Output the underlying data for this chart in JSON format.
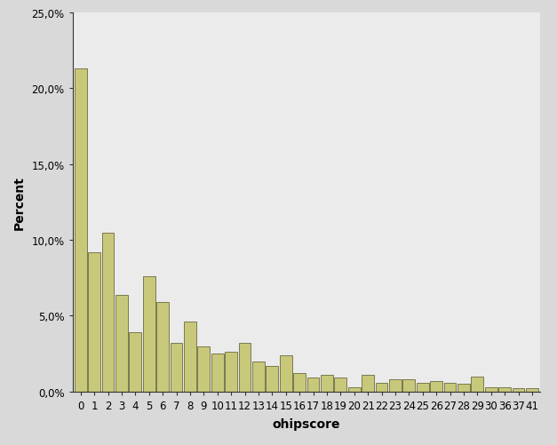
{
  "categories": [
    0,
    1,
    2,
    3,
    4,
    5,
    6,
    7,
    8,
    9,
    10,
    11,
    12,
    13,
    14,
    15,
    16,
    17,
    18,
    19,
    20,
    21,
    22,
    23,
    24,
    25,
    26,
    27,
    28,
    29,
    30,
    36,
    37,
    41
  ],
  "values": [
    21.3,
    9.2,
    10.5,
    6.4,
    3.9,
    7.6,
    5.9,
    3.2,
    4.6,
    3.0,
    2.5,
    2.6,
    3.2,
    2.0,
    1.7,
    2.4,
    1.2,
    0.9,
    1.1,
    0.9,
    0.3,
    1.1,
    0.6,
    0.8,
    0.8,
    0.6,
    0.7,
    0.6,
    0.5,
    1.0,
    0.3,
    0.3,
    0.2,
    0.2
  ],
  "bar_color": "#c8c87a",
  "bar_edge_color": "#6b6b40",
  "bar_edge_width": 0.6,
  "xlabel": "ohipscore",
  "ylabel": "Percent",
  "ylim": [
    0,
    25.0
  ],
  "yticks": [
    0,
    5.0,
    10.0,
    15.0,
    20.0,
    25.0
  ],
  "ytick_labels": [
    "0,0%",
    "5,0%",
    "10,0%",
    "15,0%",
    "20,0%",
    "25,0%"
  ],
  "outer_bg_color": "#d9d9d9",
  "plot_bg_color": "#ebebeb",
  "xlabel_fontsize": 10,
  "ylabel_fontsize": 10,
  "tick_fontsize": 8.5,
  "spine_color": "#333333"
}
